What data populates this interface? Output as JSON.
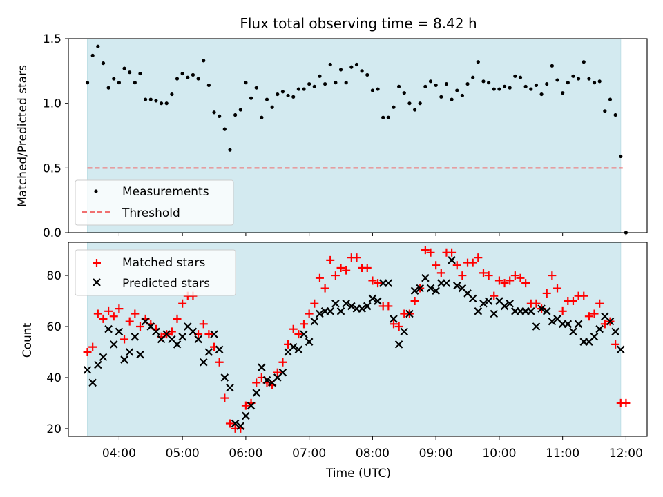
{
  "chart_data": [
    {
      "type": "scatter",
      "title": "Flux total observing time = 8.42 h",
      "xlabel": "",
      "ylabel": "Matched/Predicted stars",
      "ylim": [
        0,
        1.5
      ],
      "xlim": [
        "03:12",
        "12:20"
      ],
      "yticks": [
        "0.0",
        "0.5",
        "1.0",
        "1.5"
      ],
      "xticks": [
        "04:00",
        "05:00",
        "06:00",
        "07:00",
        "08:00",
        "09:00",
        "10:00",
        "11:00",
        "12:00"
      ],
      "observing_window": [
        "03:30",
        "11:55"
      ],
      "observing_window_color": "#d3eaf0",
      "legend_position": "lower-left",
      "legend": [
        "Measurements",
        "Threshold"
      ],
      "threshold": {
        "name": "Threshold",
        "value": 0.5,
        "color": "#f07070",
        "style": "dashed"
      },
      "series": [
        {
          "name": "Measurements",
          "color": "#000000",
          "marker": "dot",
          "x": [
            "03:30",
            "03:35",
            "03:40",
            "03:45",
            "03:50",
            "03:55",
            "04:00",
            "04:05",
            "04:10",
            "04:15",
            "04:20",
            "04:25",
            "04:30",
            "04:35",
            "04:40",
            "04:45",
            "04:50",
            "04:55",
            "05:00",
            "05:05",
            "05:10",
            "05:15",
            "05:20",
            "05:25",
            "05:30",
            "05:35",
            "05:40",
            "05:45",
            "05:50",
            "05:55",
            "06:00",
            "06:05",
            "06:10",
            "06:15",
            "06:20",
            "06:25",
            "06:30",
            "06:35",
            "06:40",
            "06:45",
            "06:50",
            "06:55",
            "07:00",
            "07:05",
            "07:10",
            "07:15",
            "07:20",
            "07:25",
            "07:30",
            "07:35",
            "07:40",
            "07:45",
            "07:50",
            "07:55",
            "08:00",
            "08:05",
            "08:10",
            "08:15",
            "08:20",
            "08:25",
            "08:30",
            "08:35",
            "08:40",
            "08:45",
            "08:50",
            "08:55",
            "09:00",
            "09:05",
            "09:10",
            "09:15",
            "09:20",
            "09:25",
            "09:30",
            "09:35",
            "09:40",
            "09:45",
            "09:50",
            "09:55",
            "10:00",
            "10:05",
            "10:10",
            "10:15",
            "10:20",
            "10:25",
            "10:30",
            "10:35",
            "10:40",
            "10:45",
            "10:50",
            "10:55",
            "11:00",
            "11:05",
            "11:10",
            "11:15",
            "11:20",
            "11:25",
            "11:30",
            "11:35",
            "11:40",
            "11:45",
            "11:50",
            "11:55",
            "12:00"
          ],
          "y": [
            1.16,
            1.37,
            1.44,
            1.31,
            1.12,
            1.19,
            1.16,
            1.27,
            1.24,
            1.16,
            1.23,
            1.03,
            1.03,
            1.02,
            1.0,
            1.0,
            1.07,
            1.19,
            1.23,
            1.2,
            1.22,
            1.19,
            1.33,
            1.14,
            0.93,
            0.9,
            0.8,
            0.64,
            0.91,
            0.95,
            1.16,
            1.04,
            1.12,
            0.89,
            1.03,
            0.97,
            1.07,
            1.09,
            1.06,
            1.05,
            1.11,
            1.11,
            1.15,
            1.13,
            1.21,
            1.15,
            1.3,
            1.16,
            1.26,
            1.16,
            1.28,
            1.3,
            1.25,
            1.22,
            1.1,
            1.11,
            0.89,
            0.89,
            0.97,
            1.13,
            1.08,
            1.0,
            0.95,
            1.0,
            1.13,
            1.17,
            1.14,
            1.05,
            1.15,
            1.03,
            1.1,
            1.06,
            1.15,
            1.2,
            1.32,
            1.17,
            1.16,
            1.11,
            1.11,
            1.13,
            1.12,
            1.21,
            1.2,
            1.13,
            1.11,
            1.14,
            1.07,
            1.15,
            1.29,
            1.18,
            1.08,
            1.16,
            1.21,
            1.19,
            1.32,
            1.19,
            1.16,
            1.17,
            0.94,
            1.03,
            0.91,
            0.59,
            0.0
          ]
        }
      ]
    },
    {
      "type": "scatter",
      "title": "",
      "xlabel": "Time (UTC)",
      "ylabel": "Count",
      "ylim": [
        17,
        93
      ],
      "xlim": [
        "03:12",
        "12:20"
      ],
      "yticks": [
        "20",
        "40",
        "60",
        "80"
      ],
      "xticks": [
        "04:00",
        "05:00",
        "06:00",
        "07:00",
        "08:00",
        "09:00",
        "10:00",
        "11:00",
        "12:00"
      ],
      "legend_position": "upper-left",
      "legend": [
        "Matched stars",
        "Predicted stars"
      ],
      "series": [
        {
          "name": "Matched stars",
          "color": "#ff0000",
          "marker": "plus",
          "x": [
            "03:30",
            "03:35",
            "03:40",
            "03:45",
            "03:50",
            "03:55",
            "04:00",
            "04:05",
            "04:10",
            "04:15",
            "04:20",
            "04:25",
            "04:30",
            "04:35",
            "04:40",
            "04:45",
            "04:50",
            "04:55",
            "05:00",
            "05:05",
            "05:10",
            "05:15",
            "05:20",
            "05:25",
            "05:30",
            "05:35",
            "05:40",
            "05:45",
            "05:50",
            "05:55",
            "06:00",
            "06:05",
            "06:10",
            "06:15",
            "06:20",
            "06:25",
            "06:30",
            "06:35",
            "06:40",
            "06:45",
            "06:50",
            "06:55",
            "07:00",
            "07:05",
            "07:10",
            "07:15",
            "07:20",
            "07:25",
            "07:30",
            "07:35",
            "07:40",
            "07:45",
            "07:50",
            "07:55",
            "08:00",
            "08:05",
            "08:10",
            "08:15",
            "08:20",
            "08:25",
            "08:30",
            "08:35",
            "08:40",
            "08:45",
            "08:50",
            "08:55",
            "09:00",
            "09:05",
            "09:10",
            "09:15",
            "09:20",
            "09:25",
            "09:30",
            "09:35",
            "09:40",
            "09:45",
            "09:50",
            "09:55",
            "10:00",
            "10:05",
            "10:10",
            "10:15",
            "10:20",
            "10:25",
            "10:30",
            "10:35",
            "10:40",
            "10:45",
            "10:50",
            "10:55",
            "11:00",
            "11:05",
            "11:10",
            "11:15",
            "11:20",
            "11:25",
            "11:30",
            "11:35",
            "11:40",
            "11:45",
            "11:50",
            "11:55",
            "12:00"
          ],
          "y": [
            50,
            52,
            65,
            63,
            66,
            64,
            67,
            55,
            62,
            65,
            60,
            63,
            61,
            59,
            56,
            57,
            58,
            63,
            69,
            72,
            72,
            57,
            61,
            57,
            52,
            46,
            32,
            22,
            20,
            20,
            29,
            30,
            38,
            40,
            38,
            37,
            42,
            46,
            53,
            59,
            57,
            61,
            65,
            69,
            79,
            75,
            86,
            80,
            83,
            82,
            87,
            87,
            83,
            83,
            78,
            77,
            68,
            68,
            61,
            60,
            65,
            65,
            70,
            75,
            90,
            89,
            84,
            81,
            89,
            89,
            84,
            80,
            85,
            85,
            87,
            81,
            80,
            72,
            78,
            77,
            78,
            80,
            79,
            77,
            69,
            69,
            67,
            73,
            80,
            75,
            66,
            70,
            70,
            72,
            72,
            64,
            65,
            69,
            61,
            62,
            53,
            30,
            30
          ]
        },
        {
          "name": "Predicted stars",
          "color": "#000000",
          "marker": "cross",
          "x": [
            "03:30",
            "03:35",
            "03:40",
            "03:45",
            "03:50",
            "03:55",
            "04:00",
            "04:05",
            "04:10",
            "04:15",
            "04:20",
            "04:25",
            "04:30",
            "04:35",
            "04:40",
            "04:45",
            "04:50",
            "04:55",
            "05:00",
            "05:05",
            "05:10",
            "05:15",
            "05:20",
            "05:25",
            "05:30",
            "05:35",
            "05:40",
            "05:45",
            "05:50",
            "05:55",
            "06:00",
            "06:05",
            "06:10",
            "06:15",
            "06:20",
            "06:25",
            "06:30",
            "06:35",
            "06:40",
            "06:45",
            "06:50",
            "06:55",
            "07:00",
            "07:05",
            "07:10",
            "07:15",
            "07:20",
            "07:25",
            "07:30",
            "07:35",
            "07:40",
            "07:45",
            "07:50",
            "07:55",
            "08:00",
            "08:05",
            "08:10",
            "08:15",
            "08:20",
            "08:25",
            "08:30",
            "08:35",
            "08:40",
            "08:45",
            "08:50",
            "08:55",
            "09:00",
            "09:05",
            "09:10",
            "09:15",
            "09:20",
            "09:25",
            "09:30",
            "09:35",
            "09:40",
            "09:45",
            "09:50",
            "09:55",
            "10:00",
            "10:05",
            "10:10",
            "10:15",
            "10:20",
            "10:25",
            "10:30",
            "10:35",
            "10:40",
            "10:45",
            "10:50",
            "10:55",
            "11:00",
            "11:05",
            "11:10",
            "11:15",
            "11:20",
            "11:25",
            "11:30",
            "11:35",
            "11:40",
            "11:45",
            "11:50",
            "11:55"
          ],
          "y": [
            43,
            38,
            45,
            48,
            59,
            53,
            58,
            47,
            50,
            56,
            49,
            62,
            60,
            58,
            55,
            57,
            55,
            53,
            56,
            60,
            58,
            55,
            46,
            50,
            57,
            51,
            40,
            36,
            22,
            21,
            25,
            29,
            34,
            44,
            39,
            38,
            40,
            42,
            50,
            52,
            51,
            57,
            54,
            62,
            65,
            66,
            66,
            69,
            66,
            69,
            68,
            67,
            67,
            68,
            71,
            70,
            77,
            77,
            63,
            53,
            58,
            65,
            74,
            75,
            79,
            75,
            74,
            77,
            77,
            86,
            76,
            75,
            73,
            71,
            66,
            69,
            70,
            65,
            70,
            68,
            69,
            66,
            66,
            66,
            66,
            60,
            67,
            66,
            62,
            63,
            61,
            61,
            58,
            61,
            54,
            54,
            56,
            59,
            64,
            62,
            58,
            51
          ]
        }
      ]
    }
  ]
}
